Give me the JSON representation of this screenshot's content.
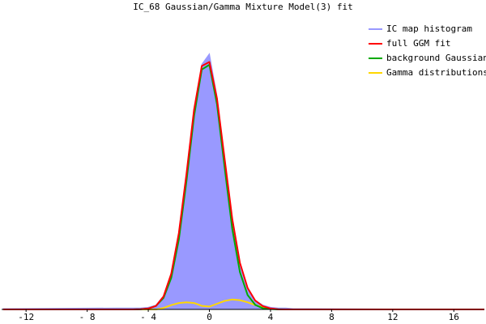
{
  "chart_data": {
    "type": "line",
    "title": "IC_68 Gaussian/Gamma Mixture Model(3) fit",
    "x": [
      -13.5,
      -6,
      -5.5,
      -5,
      -4.5,
      -4,
      -3.5,
      -3,
      -2.5,
      -2,
      -1.5,
      -1,
      -0.5,
      0,
      0.5,
      1,
      1.5,
      2,
      2.5,
      3,
      3.5,
      4,
      4.5,
      5,
      5.5,
      6,
      18
    ],
    "series": [
      {
        "name": "IC map histogram",
        "color": "#9999ff",
        "style": "area",
        "values": [
          0.001,
          0.002,
          0.002,
          0.002,
          0.002,
          0.003,
          0.006,
          0.019,
          0.05,
          0.106,
          0.19,
          0.28,
          0.345,
          0.36,
          0.3,
          0.21,
          0.126,
          0.066,
          0.03,
          0.013,
          0.006,
          0.003,
          0.002,
          0.002,
          0.001,
          0.001,
          0
        ]
      },
      {
        "name": "full GGM fit",
        "color": "#ff0000",
        "style": "line",
        "values": [
          0,
          0,
          0,
          0,
          0.0003,
          0.0012,
          0.0049,
          0.0182,
          0.0502,
          0.1074,
          0.1906,
          0.2814,
          0.3428,
          0.3485,
          0.2969,
          0.2111,
          0.1269,
          0.0656,
          0.0302,
          0.0124,
          0.0046,
          0.0014,
          0.0001,
          0,
          0,
          0,
          0
        ]
      },
      {
        "name": "background Gaussian",
        "color": "#00aa00",
        "style": "line",
        "values": [
          0,
          0,
          0,
          0,
          0.0003,
          0.0012,
          0.0049,
          0.0162,
          0.0442,
          0.0984,
          0.1806,
          0.2724,
          0.3378,
          0.3445,
          0.2889,
          0.1991,
          0.1129,
          0.0526,
          0.0202,
          0.0064,
          0.0016,
          0.0004,
          0.0001,
          0,
          0,
          0,
          0
        ]
      },
      {
        "name": "Gamma distributions",
        "color": "#ffd700",
        "style": "line",
        "values": [
          0,
          0,
          0,
          0,
          0,
          0,
          0,
          0.002,
          0.006,
          0.009,
          0.01,
          0.009,
          0.005,
          0.004,
          0.008,
          0.012,
          0.014,
          0.013,
          0.01,
          0.006,
          0.003,
          0.001,
          0,
          0,
          0,
          0,
          0
        ]
      }
    ],
    "xlim": [
      -13.6,
      18
    ],
    "ylim": [
      0,
      0.43
    ],
    "xticks": [
      -12,
      {
        "value": -8,
        "label": "- 8"
      },
      {
        "value": -4,
        "label": "- 4"
      },
      0,
      4,
      8,
      12,
      16
    ],
    "legend": "top-right"
  }
}
